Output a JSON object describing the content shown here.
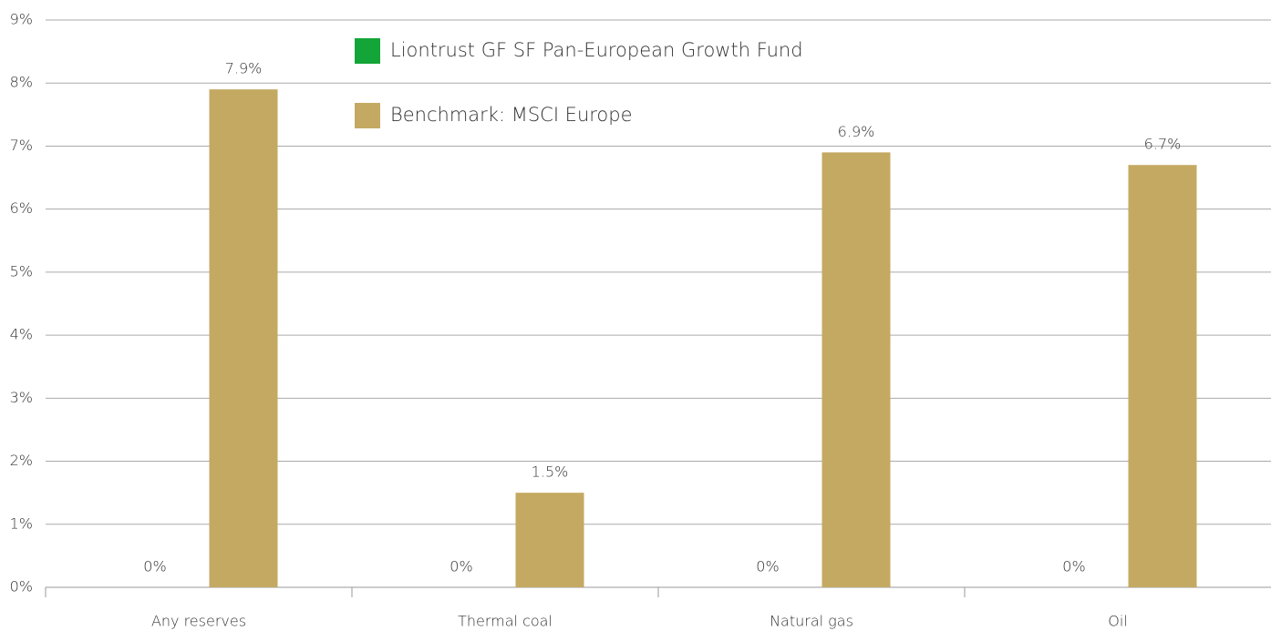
{
  "chart_data": {
    "type": "bar",
    "categories": [
      "Any reserves",
      "Thermal coal",
      "Natural gas",
      "Oil"
    ],
    "series": [
      {
        "name": "Liontrust GF SF Pan-European Growth Fund",
        "color": "#13a538",
        "values": [
          0,
          0,
          0,
          0
        ],
        "value_labels": [
          "0%",
          "0%",
          "0%",
          "0%"
        ]
      },
      {
        "name": "Benchmark: MSCI Europe",
        "color": "#c4a962",
        "values": [
          7.9,
          1.5,
          6.9,
          6.7
        ],
        "value_labels": [
          "7.9%",
          "1.5%",
          "6.9%",
          "6.7%"
        ]
      }
    ],
    "ylim": [
      0,
      9
    ],
    "yticks": [
      {
        "value": 0,
        "label": "0%"
      },
      {
        "value": 1,
        "label": "1%"
      },
      {
        "value": 2,
        "label": "2%"
      },
      {
        "value": 3,
        "label": "3%"
      },
      {
        "value": 4,
        "label": "4%"
      },
      {
        "value": 5,
        "label": "5%"
      },
      {
        "value": 6,
        "label": "6%"
      },
      {
        "value": 7,
        "label": "7%"
      },
      {
        "value": 8,
        "label": "8%"
      },
      {
        "value": 9,
        "label": "9%"
      }
    ],
    "grid": true
  }
}
